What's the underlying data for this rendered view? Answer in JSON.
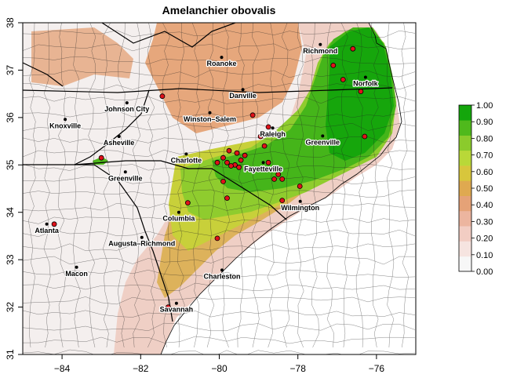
{
  "map": {
    "title": "Amelanchier obovalis",
    "x_ticks": [
      {
        "value": -84,
        "label": "−84"
      },
      {
        "value": -82,
        "label": "−82"
      },
      {
        "value": -80,
        "label": "−80"
      },
      {
        "value": -78,
        "label": "−78"
      },
      {
        "value": -76,
        "label": "−76"
      }
    ],
    "y_ticks": [
      {
        "value": 31,
        "label": "31"
      },
      {
        "value": 32,
        "label": "32"
      },
      {
        "value": 33,
        "label": "33"
      },
      {
        "value": 34,
        "label": "34"
      },
      {
        "value": 35,
        "label": "35"
      },
      {
        "value": 36,
        "label": "36"
      },
      {
        "value": 37,
        "label": "37"
      },
      {
        "value": 38,
        "label": "38"
      }
    ],
    "xlim": [
      -85,
      -75
    ],
    "ylim": [
      31,
      38
    ],
    "cities": [
      {
        "name": "Richmond",
        "lon": -77.43,
        "lat": 37.54
      },
      {
        "name": "Roanoke",
        "lon": -79.94,
        "lat": 37.27
      },
      {
        "name": "Norfolk",
        "lon": -76.28,
        "lat": 36.85
      },
      {
        "name": "Danville",
        "lon": -79.4,
        "lat": 36.59
      },
      {
        "name": "Johnson City",
        "lon": -82.35,
        "lat": 36.31
      },
      {
        "name": "Winston–Salem",
        "lon": -80.24,
        "lat": 36.1
      },
      {
        "name": "Knoxville",
        "lon": -83.92,
        "lat": 35.96
      },
      {
        "name": "Raleigh",
        "lon": -78.64,
        "lat": 35.78
      },
      {
        "name": "Greenville",
        "lon": -77.37,
        "lat": 35.61
      },
      {
        "name": "Asheville",
        "lon": -82.55,
        "lat": 35.6
      },
      {
        "name": "Charlotte",
        "lon": -80.84,
        "lat": 35.23
      },
      {
        "name": "Fayetteville",
        "lon": -78.88,
        "lat": 35.05
      },
      {
        "name": "Greenville",
        "lon": -82.39,
        "lat": 34.85
      },
      {
        "name": "Wilmington",
        "lon": -77.94,
        "lat": 34.23
      },
      {
        "name": "Columbia",
        "lon": -81.03,
        "lat": 34.0
      },
      {
        "name": "Atlanta",
        "lon": -84.39,
        "lat": 33.75
      },
      {
        "name": "Augusta–Richmond",
        "lon": -81.97,
        "lat": 33.47
      },
      {
        "name": "Macon",
        "lon": -83.63,
        "lat": 32.84
      },
      {
        "name": "Charleston",
        "lon": -79.93,
        "lat": 32.78
      },
      {
        "name": "Savannah",
        "lon": -81.09,
        "lat": 32.08
      }
    ],
    "occurrences": [
      [
        -76.6,
        37.45
      ],
      [
        -77.1,
        37.1
      ],
      [
        -76.85,
        36.8
      ],
      [
        -76.4,
        36.55
      ],
      [
        -76.3,
        35.6
      ],
      [
        -81.45,
        36.45
      ],
      [
        -79.15,
        36.05
      ],
      [
        -78.75,
        35.8
      ],
      [
        -78.95,
        35.6
      ],
      [
        -83.0,
        35.15
      ],
      [
        -79.75,
        35.3
      ],
      [
        -79.55,
        35.25
      ],
      [
        -79.35,
        35.2
      ],
      [
        -79.45,
        35.1
      ],
      [
        -79.9,
        35.15
      ],
      [
        -79.8,
        35.05
      ],
      [
        -79.6,
        35.0
      ],
      [
        -79.5,
        34.95
      ],
      [
        -79.7,
        34.98
      ],
      [
        -80.05,
        35.05
      ],
      [
        -78.85,
        35.4
      ],
      [
        -78.75,
        35.05
      ],
      [
        -78.5,
        34.8
      ],
      [
        -78.6,
        34.7
      ],
      [
        -78.4,
        34.7
      ],
      [
        -77.95,
        34.55
      ],
      [
        -79.9,
        34.65
      ],
      [
        -79.8,
        34.3
      ],
      [
        -78.4,
        34.25
      ],
      [
        -80.8,
        34.2
      ],
      [
        -80.05,
        33.45
      ],
      [
        -84.2,
        33.75
      ],
      [
        -81.3,
        32.0
      ]
    ],
    "colorbar": {
      "labels": [
        "0.00",
        "0.10",
        "0.20",
        "0.30",
        "0.40",
        "0.50",
        "0.60",
        "0.70",
        "0.80",
        "0.90",
        "1.00"
      ],
      "colors": [
        "#f7f7f7",
        "#f6e4e0",
        "#f2cdc3",
        "#ecb59f",
        "#e5a277",
        "#dfa950",
        "#d8c63c",
        "#b9d838",
        "#8bcb2c",
        "#4fb91c",
        "#14a60c"
      ]
    },
    "colors": {
      "ocean": "#ffffff",
      "state_border": "#000000",
      "county_border": "#222222",
      "occurrence_fill": "#e0121a",
      "city_dot": "#000000"
    }
  }
}
